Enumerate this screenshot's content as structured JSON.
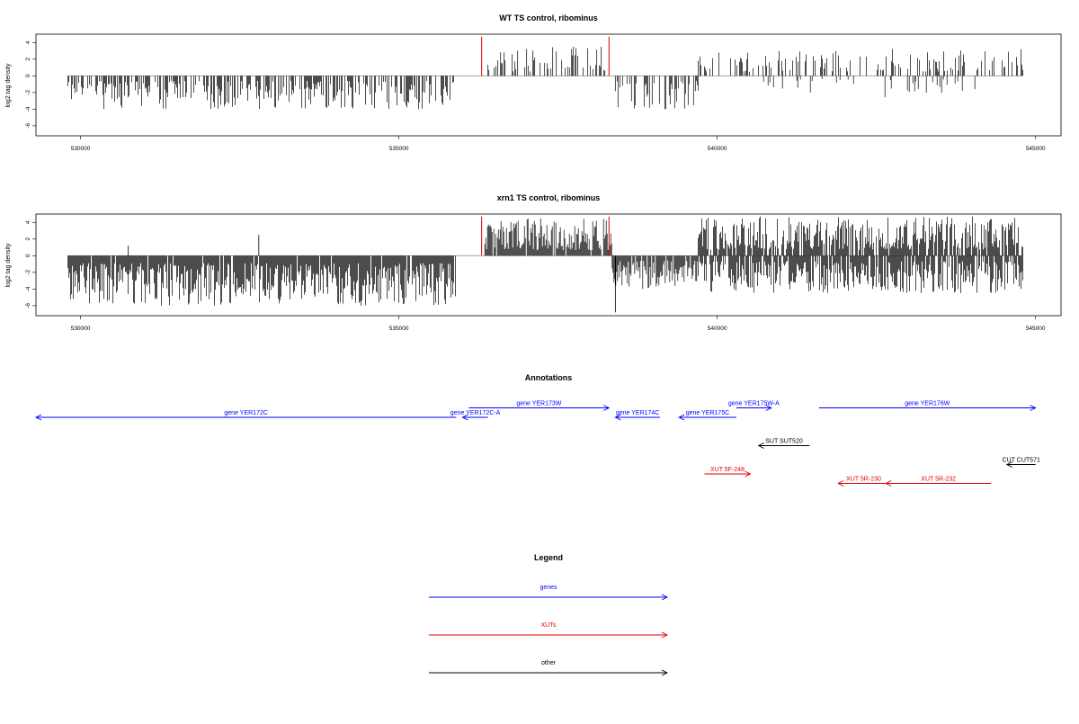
{
  "chart_data": [
    {
      "type": "bar",
      "title": "WT TS control, ribominus",
      "xlabel": "",
      "ylabel": "log2 tag density",
      "xlim": [
        529300,
        545400
      ],
      "ylim": [
        -7.2,
        5
      ],
      "xticks": [
        530000,
        535000,
        540000,
        545000
      ],
      "xtick_labels": [
        "530000",
        "535000",
        "540000",
        "545000"
      ],
      "yticks": [
        -6,
        -4,
        -2,
        0,
        2,
        4
      ],
      "ytick_labels": [
        "-6",
        "-4",
        "-2",
        "0",
        "2",
        "4"
      ],
      "baseline_range": [
        529800,
        544800
      ],
      "markers": [
        {
          "x": 536300,
          "color": "#e00000"
        },
        {
          "x": 538300,
          "color": "#e00000"
        }
      ],
      "segments": [
        {
          "start": 529800,
          "end": 535900,
          "sign": -1,
          "max": 4.0,
          "density": 0.6,
          "seed": 11
        },
        {
          "start": 536400,
          "end": 538300,
          "sign": 1,
          "max": 3.5,
          "density": 0.35,
          "seed": 12
        },
        {
          "start": 538400,
          "end": 539700,
          "sign": -1,
          "max": 4.0,
          "density": 0.45,
          "seed": 13
        },
        {
          "start": 539700,
          "end": 544800,
          "sign": 1,
          "max": 3.3,
          "density": 0.35,
          "seed": 14
        },
        {
          "start": 540700,
          "end": 544300,
          "sign": -1,
          "max": 2.6,
          "density": 0.15,
          "seed": 15
        }
      ]
    },
    {
      "type": "bar",
      "title": "xrn1 TS control, ribominus",
      "xlabel": "",
      "ylabel": "log2 tag density",
      "xlim": [
        529300,
        545400
      ],
      "ylim": [
        -7.2,
        5
      ],
      "xticks": [
        530000,
        535000,
        540000,
        545000
      ],
      "xtick_labels": [
        "530000",
        "535000",
        "540000",
        "545000"
      ],
      "yticks": [
        -6,
        -4,
        -2,
        0,
        2,
        4
      ],
      "ytick_labels": [
        "-6",
        "-4",
        "-2",
        "0",
        "2",
        "4"
      ],
      "baseline_range": [
        529800,
        544800
      ],
      "markers": [
        {
          "x": 536300,
          "color": "#e00000"
        },
        {
          "x": 538300,
          "color": "#e00000"
        }
      ],
      "segments": [
        {
          "start": 529800,
          "end": 535900,
          "sign": -1,
          "max": 6.0,
          "density": 0.95,
          "seed": 21
        },
        {
          "start": 536350,
          "end": 538350,
          "sign": 1,
          "max": 4.5,
          "density": 0.95,
          "seed": 22
        },
        {
          "start": 538350,
          "end": 539700,
          "sign": -1,
          "max": 4.0,
          "density": 0.9,
          "seed": 23
        },
        {
          "start": 539700,
          "end": 544800,
          "sign": 1,
          "max": 4.7,
          "density": 0.8,
          "seed": 24
        },
        {
          "start": 539700,
          "end": 544800,
          "sign": -1,
          "max": 4.5,
          "density": 0.8,
          "seed": 25
        }
      ],
      "spikes": [
        {
          "x": 532800,
          "y": 2.5
        },
        {
          "x": 530750,
          "y": 1.2
        },
        {
          "x": 538400,
          "y": -6.8
        }
      ]
    }
  ],
  "annotations": {
    "title": "Annotations",
    "colors": {
      "gene": "#0000ff",
      "xut": "#e00000",
      "other": "#000000"
    },
    "features": [
      {
        "label": "gene YER172C",
        "kind": "gene",
        "start": 529300,
        "end": 535900,
        "dir": "reverse",
        "row": 2
      },
      {
        "label": "gene YER172C-A",
        "kind": "gene",
        "start": 536000,
        "end": 536400,
        "dir": "reverse",
        "row": 2
      },
      {
        "label": "gene YER173W",
        "kind": "gene",
        "start": 536100,
        "end": 538300,
        "dir": "forward",
        "row": 1
      },
      {
        "label": "gene YER174C",
        "kind": "gene",
        "start": 538400,
        "end": 539100,
        "dir": "reverse",
        "row": 2
      },
      {
        "label": "gene YER175C",
        "kind": "gene",
        "start": 539400,
        "end": 540300,
        "dir": "reverse",
        "row": 2
      },
      {
        "label": "gene YER175W-A",
        "kind": "gene",
        "start": 540300,
        "end": 540850,
        "dir": "forward",
        "row": 1
      },
      {
        "label": "gene YER176W",
        "kind": "gene",
        "start": 541600,
        "end": 545000,
        "dir": "forward",
        "row": 1
      },
      {
        "label": "SUT SUT520",
        "kind": "other",
        "start": 540650,
        "end": 541450,
        "dir": "reverse",
        "row": 5
      },
      {
        "label": "CUT CUT571",
        "kind": "other",
        "start": 544550,
        "end": 545000,
        "dir": "reverse",
        "row": 7
      },
      {
        "label": "XUT 5F-248",
        "kind": "xut",
        "start": 539800,
        "end": 540520,
        "dir": "forward",
        "row": 8
      },
      {
        "label": "XUT 5R-230",
        "kind": "xut",
        "start": 541900,
        "end": 542700,
        "dir": "reverse",
        "row": 9
      },
      {
        "label": "XUT 5R-232",
        "kind": "xut",
        "start": 542650,
        "end": 544300,
        "dir": "reverse",
        "row": 9
      }
    ]
  },
  "legend": {
    "title": "Legend",
    "items": [
      {
        "label": "genes",
        "color": "#0000ff"
      },
      {
        "label": "XUTs",
        "color": "#e00000"
      },
      {
        "label": "other",
        "color": "#000000"
      }
    ]
  }
}
